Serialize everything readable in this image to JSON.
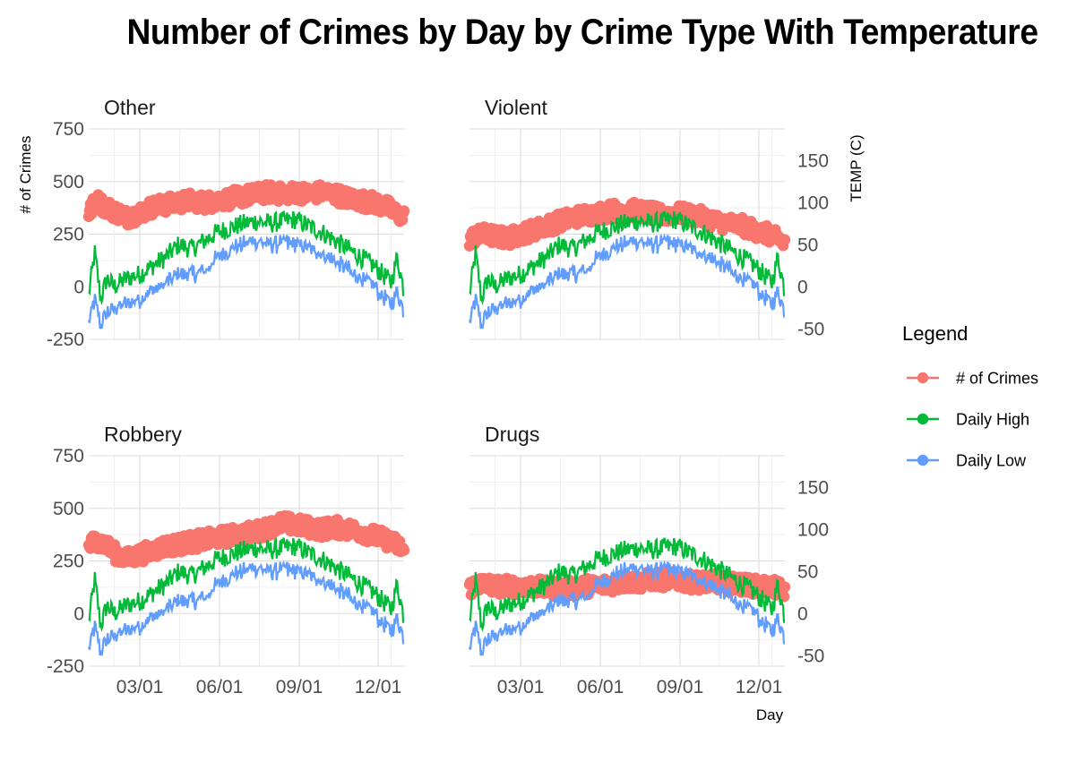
{
  "title": "Number of Crimes by Day by Crime Type With Temperature",
  "chart_data": {
    "type": "line",
    "title": "Number of Crimes by Day by Crime Type With Temperature",
    "xlabel": "Day",
    "ylabel": "# of Crimes",
    "y2label": "TEMP (C)",
    "xlim": [
      1,
      365
    ],
    "ylim": [
      -250,
      750
    ],
    "y2lim": [
      -62.5,
      187.5
    ],
    "x_ticks": [
      {
        "day": 60,
        "label": "03/01"
      },
      {
        "day": 152,
        "label": "06/01"
      },
      {
        "day": 244,
        "label": "09/01"
      },
      {
        "day": 335,
        "label": "12/01"
      }
    ],
    "y_ticks": [
      -250,
      0,
      250,
      500,
      750
    ],
    "y2_ticks": [
      -50,
      0,
      50,
      100,
      150
    ],
    "grid": true,
    "legend": {
      "title": "Legend",
      "position": "right",
      "entries": [
        {
          "label": "# of Crimes",
          "color": "#F8766D"
        },
        {
          "label": "Daily High",
          "color": "#00BA38"
        },
        {
          "label": "Daily Low",
          "color": "#619CFF"
        }
      ]
    },
    "temperature_series": [
      {
        "name": "Daily High",
        "color": "#00BA38",
        "x": [
          1,
          8,
          15,
          22,
          30,
          45,
          60,
          75,
          90,
          105,
          120,
          135,
          150,
          165,
          180,
          195,
          210,
          225,
          240,
          255,
          270,
          285,
          300,
          315,
          330,
          340,
          350,
          357,
          365
        ],
        "values": [
          -10,
          40,
          -15,
          10,
          0,
          10,
          15,
          25,
          35,
          50,
          45,
          55,
          65,
          70,
          75,
          78,
          75,
          78,
          80,
          72,
          65,
          55,
          45,
          35,
          25,
          15,
          5,
          35,
          -5
        ]
      },
      {
        "name": "Daily Low",
        "color": "#619CFF",
        "x": [
          1,
          8,
          15,
          22,
          30,
          45,
          60,
          75,
          90,
          105,
          120,
          135,
          150,
          165,
          180,
          195,
          210,
          225,
          240,
          255,
          270,
          285,
          300,
          315,
          330,
          340,
          350,
          357,
          365
        ],
        "values": [
          -40,
          -15,
          -45,
          -30,
          -25,
          -20,
          -15,
          -5,
          5,
          15,
          15,
          20,
          35,
          45,
          50,
          55,
          50,
          52,
          50,
          45,
          40,
          30,
          20,
          10,
          0,
          -10,
          -20,
          -5,
          -30
        ]
      }
    ],
    "panels": [
      {
        "name": "Other",
        "crimes_x": [
          1,
          10,
          20,
          30,
          45,
          60,
          75,
          90,
          105,
          120,
          135,
          150,
          165,
          180,
          195,
          210,
          225,
          240,
          255,
          270,
          285,
          300,
          315,
          330,
          345,
          355,
          365
        ],
        "crimes": [
          350,
          410,
          380,
          360,
          330,
          350,
          380,
          390,
          400,
          410,
          400,
          410,
          420,
          430,
          440,
          450,
          440,
          450,
          440,
          450,
          440,
          420,
          410,
          400,
          380,
          350,
          330
        ]
      },
      {
        "name": "Violent",
        "crimes_x": [
          1,
          10,
          20,
          30,
          45,
          60,
          75,
          90,
          105,
          120,
          135,
          150,
          165,
          180,
          195,
          210,
          225,
          240,
          255,
          270,
          285,
          300,
          315,
          330,
          345,
          355,
          365
        ],
        "crimes": [
          230,
          240,
          250,
          240,
          230,
          250,
          270,
          290,
          310,
          330,
          340,
          350,
          360,
          370,
          360,
          350,
          340,
          350,
          340,
          330,
          310,
          300,
          290,
          270,
          250,
          230,
          210
        ]
      },
      {
        "name": "Robbery",
        "crimes_x": [
          1,
          10,
          20,
          30,
          45,
          60,
          75,
          90,
          105,
          120,
          135,
          150,
          165,
          180,
          195,
          210,
          225,
          240,
          255,
          270,
          285,
          300,
          315,
          330,
          345,
          355,
          365
        ],
        "crimes": [
          320,
          350,
          330,
          290,
          260,
          280,
          300,
          320,
          330,
          340,
          350,
          360,
          370,
          380,
          390,
          410,
          430,
          420,
          410,
          400,
          410,
          400,
          390,
          370,
          350,
          330,
          300
        ]
      },
      {
        "name": "Drugs",
        "crimes_x": [
          1,
          10,
          20,
          30,
          45,
          60,
          75,
          90,
          105,
          120,
          135,
          150,
          165,
          180,
          195,
          210,
          225,
          240,
          255,
          270,
          285,
          300,
          315,
          330,
          345,
          355,
          365
        ],
        "crimes": [
          120,
          140,
          140,
          130,
          130,
          130,
          130,
          120,
          120,
          120,
          130,
          130,
          140,
          150,
          150,
          160,
          160,
          160,
          150,
          150,
          150,
          140,
          140,
          130,
          130,
          120,
          110
        ]
      }
    ]
  }
}
